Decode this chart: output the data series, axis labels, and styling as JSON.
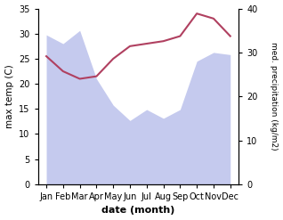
{
  "months": [
    "Jan",
    "Feb",
    "Mar",
    "Apr",
    "May",
    "Jun",
    "Jul",
    "Aug",
    "Sep",
    "Oct",
    "Nov",
    "Dec"
  ],
  "month_indices": [
    0,
    1,
    2,
    3,
    4,
    5,
    6,
    7,
    8,
    9,
    10,
    11
  ],
  "temperature": [
    25.5,
    22.5,
    21.0,
    21.5,
    25.0,
    27.5,
    28.0,
    28.5,
    29.5,
    34.0,
    33.0,
    29.5
  ],
  "precipitation": [
    34.0,
    32.0,
    35.0,
    24.0,
    18.0,
    14.5,
    17.0,
    15.0,
    17.0,
    28.0,
    30.0,
    29.5
  ],
  "temp_color": "#b04060",
  "precip_fill_color": "#c5caee",
  "precip_edge_color": "#c5caee",
  "xlabel": "date (month)",
  "ylabel_left": "max temp (C)",
  "ylabel_right": "med. precipitation (kg/m2)",
  "ylim_left": [
    0,
    35
  ],
  "ylim_right": [
    0,
    40
  ],
  "yticks_left": [
    0,
    5,
    10,
    15,
    20,
    25,
    30,
    35
  ],
  "yticks_right": [
    0,
    10,
    20,
    30,
    40
  ],
  "bg_color": "#ffffff"
}
